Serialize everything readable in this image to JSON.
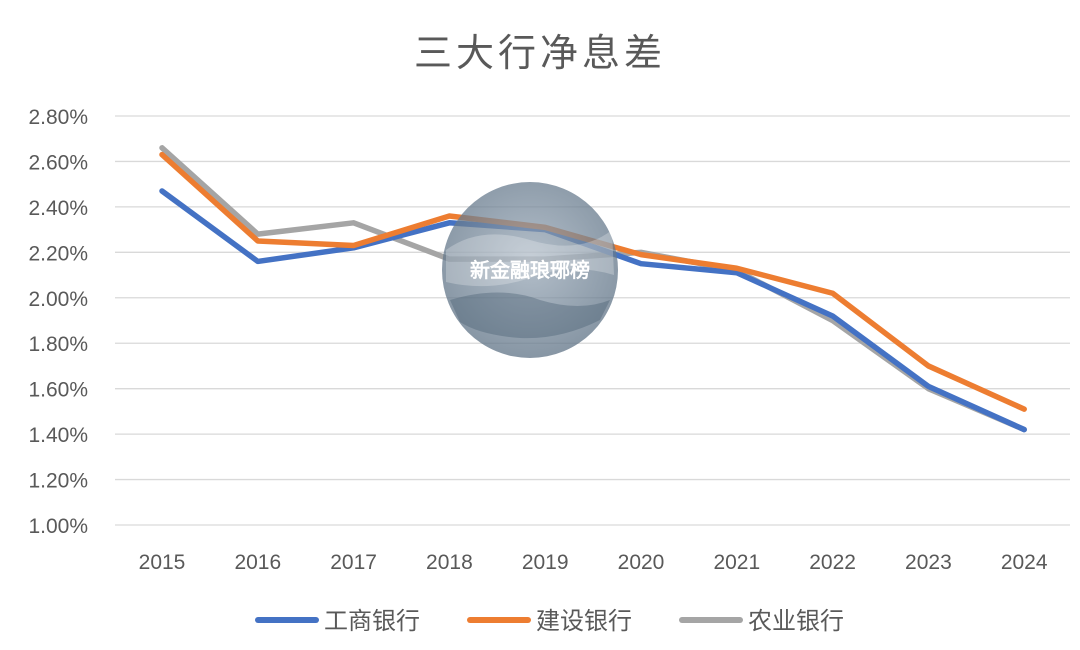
{
  "chart_data": {
    "type": "line",
    "title": "三大行净息差",
    "categories": [
      "2015",
      "2016",
      "2017",
      "2018",
      "2019",
      "2020",
      "2021",
      "2022",
      "2023",
      "2024"
    ],
    "ylim": [
      1.0,
      2.8
    ],
    "yticks": [
      "1.00%",
      "1.20%",
      "1.40%",
      "1.60%",
      "1.80%",
      "2.00%",
      "2.20%",
      "2.40%",
      "2.60%",
      "2.80%"
    ],
    "ytick_values": [
      1.0,
      1.2,
      1.4,
      1.6,
      1.8,
      2.0,
      2.2,
      2.4,
      2.6,
      2.8
    ],
    "grid": true,
    "legend_position": "bottom",
    "series": [
      {
        "name": "工商银行",
        "color": "#4472C4",
        "values": [
          2.47,
          2.16,
          2.22,
          2.33,
          2.3,
          2.15,
          2.11,
          1.92,
          1.61,
          1.42
        ]
      },
      {
        "name": "建设银行",
        "color": "#ED7D31",
        "values": [
          2.63,
          2.25,
          2.23,
          2.36,
          2.31,
          2.19,
          2.13,
          2.02,
          1.7,
          1.51
        ]
      },
      {
        "name": "农业银行",
        "color": "#A5A5A5",
        "values": [
          2.66,
          2.28,
          2.33,
          2.17,
          2.17,
          2.2,
          2.12,
          1.9,
          1.6,
          1.42
        ]
      }
    ]
  },
  "watermark": {
    "text": "新金融琅琊榜"
  }
}
